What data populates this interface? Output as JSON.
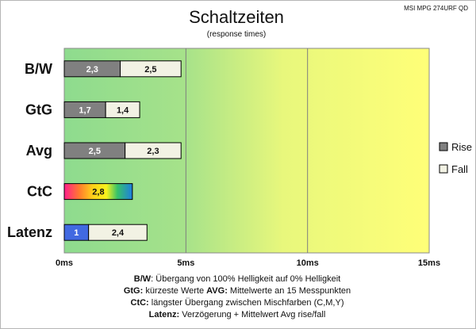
{
  "chart_data": {
    "type": "bar",
    "orientation": "horizontal",
    "stacked": true,
    "title": "Schaltzeiten",
    "subtitle": "(response times)",
    "model": "MSI MPG 274URF QD",
    "categories": [
      "B/W",
      "GtG",
      "Avg",
      "CtC",
      "Latenz"
    ],
    "series": [
      {
        "name": "Rise",
        "values": [
          2.3,
          1.7,
          2.5,
          2.8,
          1.0
        ],
        "labels": [
          "2,3",
          "1,7",
          "2,5",
          "2,8",
          "1"
        ]
      },
      {
        "name": "Fall",
        "values": [
          2.5,
          1.4,
          2.3,
          null,
          2.4
        ],
        "labels": [
          "2,5",
          "1,4",
          "2,3",
          "",
          "2,4"
        ]
      }
    ],
    "xlim": [
      0,
      15
    ],
    "xticks": [
      0,
      5,
      10,
      15
    ],
    "xtick_labels": [
      "0ms",
      "5ms",
      "10ms",
      "15ms"
    ],
    "grid": true,
    "legend_placement": "right",
    "colors": {
      "rise": "#808080",
      "fall": "#f2f2e4",
      "latenz_rise": "#4169e1",
      "background_start": "#8fdc8f",
      "background_end": "#ffff77",
      "border": "#000000"
    }
  },
  "footnotes": [
    {
      "parts": [
        {
          "text": "B/W",
          "bold": true
        },
        {
          "text": ":  Übergang von 100% Helligkeit auf 0% Helligkeit",
          "bold": false
        }
      ]
    },
    {
      "parts": [
        {
          "text": "GtG:",
          "bold": true
        },
        {
          "text": " kürzeste  Werte        ",
          "bold": false
        },
        {
          "text": "AVG:",
          "bold": true
        },
        {
          "text": " Mittelwerte  an 15 Messpunkten",
          "bold": false
        }
      ]
    },
    {
      "parts": [
        {
          "text": "CtC:",
          "bold": true
        },
        {
          "text": " längster Übergang  zwischen Mischfarben  (C,M,Y)",
          "bold": false
        }
      ]
    },
    {
      "parts": [
        {
          "text": "Latenz:",
          "bold": true
        },
        {
          "text": " Verzögerung  + Mittelwert Avg rise/fall",
          "bold": false
        }
      ]
    }
  ]
}
